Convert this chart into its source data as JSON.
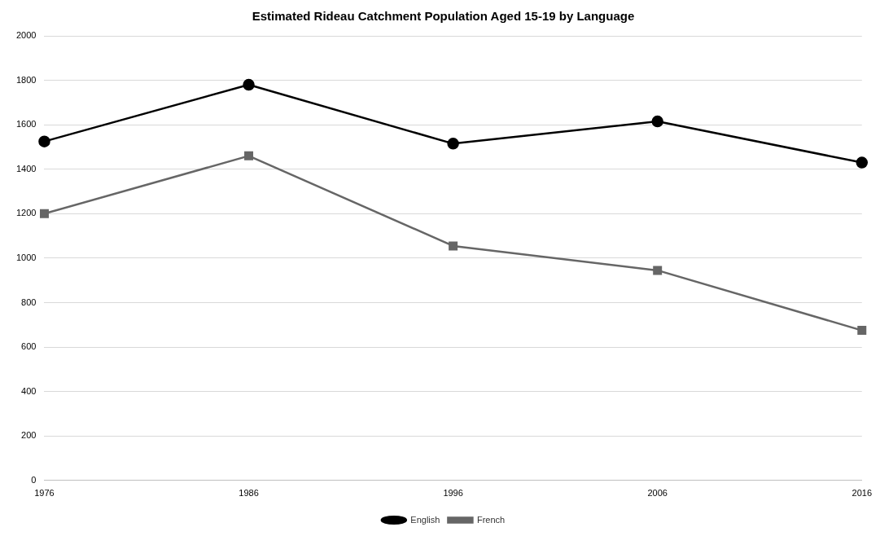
{
  "chart_data": {
    "type": "line",
    "title": "Estimated Rideau Catchment Population Aged 15-19 by Language",
    "categories": [
      "1976",
      "1986",
      "1996",
      "2006",
      "2016"
    ],
    "series": [
      {
        "name": "English",
        "color": "#000000",
        "marker": "circle",
        "values": [
          1525,
          1780,
          1515,
          1615,
          1430
        ]
      },
      {
        "name": "French",
        "color": "#666666",
        "marker": "square",
        "values": [
          1200,
          1460,
          1055,
          945,
          675
        ]
      }
    ],
    "ylim": [
      0,
      2000
    ],
    "yticks": [
      0,
      200,
      400,
      600,
      800,
      1000,
      1200,
      1400,
      1600,
      1800,
      2000
    ],
    "grid": "y",
    "legend": "bottom",
    "line_style": "solid"
  }
}
